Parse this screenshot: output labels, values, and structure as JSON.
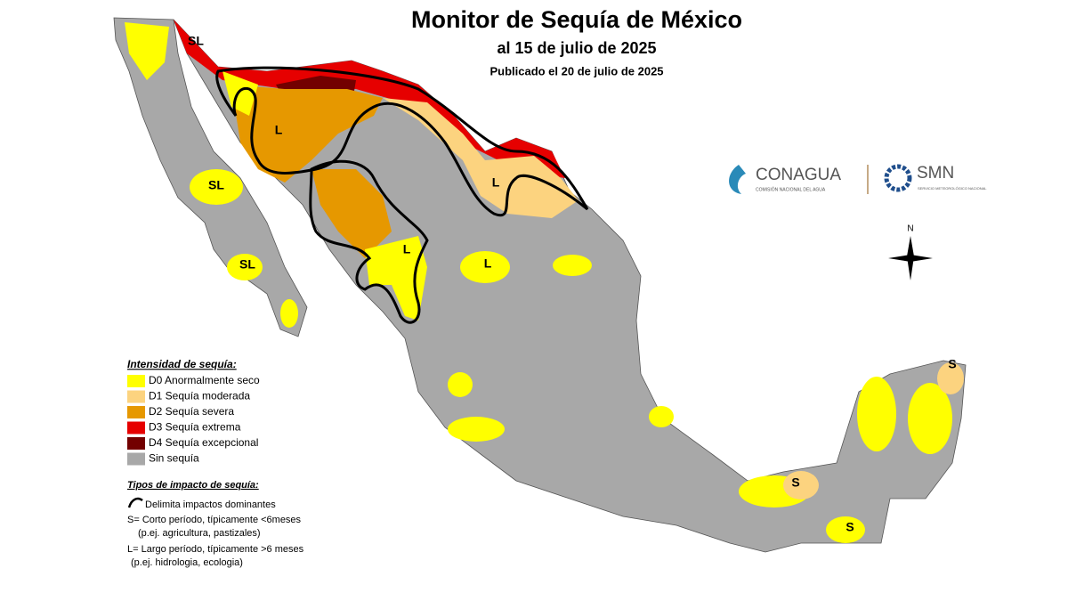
{
  "header": {
    "title": "Monitor de Sequía de México",
    "subtitle": "al 15 de julio de 2025",
    "published": "Publicado el 20 de julio de 2025"
  },
  "legend": {
    "title": "Intensidad de sequía:",
    "items": [
      {
        "label": "D0 Anormalmente seco",
        "color": "#ffff00"
      },
      {
        "label": "D1 Sequía moderada",
        "color": "#fcd37f"
      },
      {
        "label": "D2 Sequía severa",
        "color": "#e69800"
      },
      {
        "label": "D3 Sequía extrema",
        "color": "#e60000"
      },
      {
        "label": "D4 Sequía excepcional",
        "color": "#730000"
      },
      {
        "label": "Sin sequía",
        "color": "#a8a8a8"
      }
    ]
  },
  "impact": {
    "title": "Tipos de impacto de sequía:",
    "boundary": "Delimita impactos dominantes",
    "short": "S= Corto período, típicamente <6meses",
    "short_example": "(p.ej. agricultura, pastizales)",
    "long": "L= Largo período, típicamente >6 meses",
    "long_example": "(p.ej. hidrologia, ecologia)"
  },
  "logos": {
    "conagua": "CONAGUA",
    "conagua_sub": "COMISIÓN NACIONAL DEL AGUA",
    "smn": "SMN",
    "smn_sub": "SERVICIO METEOROLÓGICO NACIONAL"
  },
  "compass": {
    "north": "N"
  },
  "map_labels": [
    "SL",
    "SL",
    "SL",
    "L",
    "L",
    "L",
    "L",
    "S",
    "S",
    "S"
  ]
}
